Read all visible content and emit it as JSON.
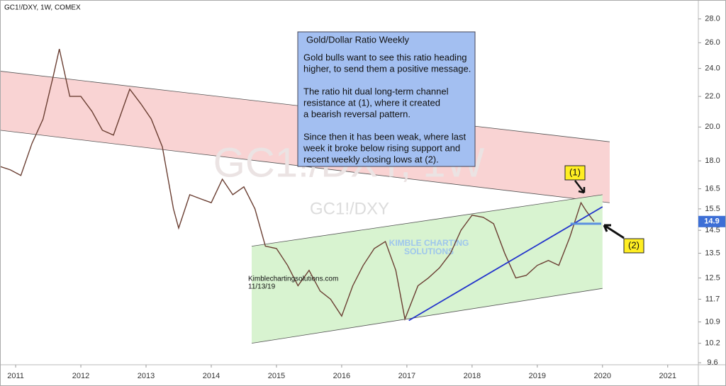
{
  "chart_data": {
    "type": "line",
    "title": "GC1!/DXY, 1W, COMEX",
    "watermark": "GC1!/DXY, 1W",
    "watermark_sub": "GC1!/DXY",
    "logo_lines": [
      "KIMBLE CHARTING",
      "SOLUTIONS"
    ],
    "credit": [
      "Kimblechartingsolutions.com",
      "11/13/19"
    ],
    "text_box": {
      "title": "Gold/Dollar Ratio Weekly",
      "paragraphs": [
        [
          "Gold bulls want to see this ratio heading",
          "higher, to send them a positive message."
        ],
        [
          "The ratio hit dual long-term channel",
          "resistance at (1), where it created",
          "a bearish reversal pattern."
        ],
        [
          "Since then it has been weak, where last",
          "week it broke below rising support and",
          "recent weekly closing lows at (2)."
        ]
      ]
    },
    "markers": [
      "(1)",
      "(2)"
    ],
    "x": [
      2010.75,
      2010.92,
      2011.08,
      2011.25,
      2011.42,
      2011.58,
      2011.67,
      2011.83,
      2012.0,
      2012.17,
      2012.33,
      2012.5,
      2012.67,
      2012.75,
      2012.92,
      2013.08,
      2013.25,
      2013.42,
      2013.5,
      2013.67,
      2013.83,
      2014.0,
      2014.17,
      2014.33,
      2014.5,
      2014.67,
      2014.83,
      2015.0,
      2015.17,
      2015.33,
      2015.5,
      2015.67,
      2015.83,
      2016.0,
      2016.17,
      2016.33,
      2016.5,
      2016.67,
      2016.83,
      2016.97,
      2017.17,
      2017.33,
      2017.5,
      2017.67,
      2017.83,
      2018.0,
      2018.17,
      2018.33,
      2018.5,
      2018.67,
      2018.83,
      2019.0,
      2019.17,
      2019.33,
      2019.5,
      2019.67,
      2019.75,
      2019.87
    ],
    "values": [
      17.7,
      17.5,
      17.2,
      19.0,
      20.5,
      23.5,
      25.5,
      22.0,
      22.0,
      21.0,
      19.8,
      19.5,
      21.5,
      22.5,
      21.5,
      20.5,
      18.8,
      15.5,
      14.6,
      16.2,
      16.0,
      15.8,
      17.0,
      16.2,
      16.6,
      15.5,
      13.8,
      13.7,
      13.0,
      12.2,
      12.8,
      12.0,
      11.7,
      11.1,
      12.2,
      13.0,
      13.7,
      14.0,
      12.8,
      11.0,
      12.2,
      12.5,
      12.9,
      13.5,
      14.5,
      15.2,
      15.1,
      14.8,
      13.5,
      12.5,
      12.6,
      13.0,
      13.2,
      13.0,
      14.2,
      15.8,
      15.4,
      14.9
    ],
    "color": "#6b3f33",
    "last_price": 14.9,
    "bands": [
      {
        "x": [
          2010.76,
          2020.11
        ],
        "upper": [
          23.8,
          19.1
        ],
        "lower": [
          19.8,
          15.8
        ],
        "color": "#f9d3d3"
      },
      {
        "x": [
          2014.62,
          2020.0
        ],
        "upper": [
          13.8,
          16.2
        ],
        "lower": [
          10.2,
          12.1
        ],
        "color": "#d8f3d0"
      }
    ],
    "trendlines": [
      {
        "x": [
          2017.03,
          2020.0
        ],
        "values": [
          10.95,
          15.6
        ],
        "color": "#2233cc"
      },
      {
        "x": [
          2019.51,
          2019.98
        ],
        "values": [
          14.8,
          14.8
        ],
        "color": "#5a8fe0"
      }
    ],
    "log_scale": true,
    "xlim": [
      2010.76,
      2021.47
    ],
    "xticks": [
      2011,
      2012,
      2013,
      2014,
      2015,
      2016,
      2017,
      2018,
      2019,
      2020,
      2021
    ],
    "ylim": [
      9.54,
      29.7
    ],
    "yticks": [
      9.6,
      10.2,
      10.9,
      11.7,
      12.5,
      13.5,
      14.5,
      15.5,
      {
        "value": 16.5,
        "label": "16.5"
      },
      {
        "value": 18,
        "label": "18.0"
      },
      {
        "value": 20,
        "label": "20.0"
      },
      {
        "value": 22,
        "label": "22.0"
      },
      {
        "value": 24,
        "label": "24.0"
      },
      {
        "value": 26,
        "label": "26.0"
      },
      {
        "value": 28,
        "label": "28.0"
      }
    ],
    "grid": false
  }
}
